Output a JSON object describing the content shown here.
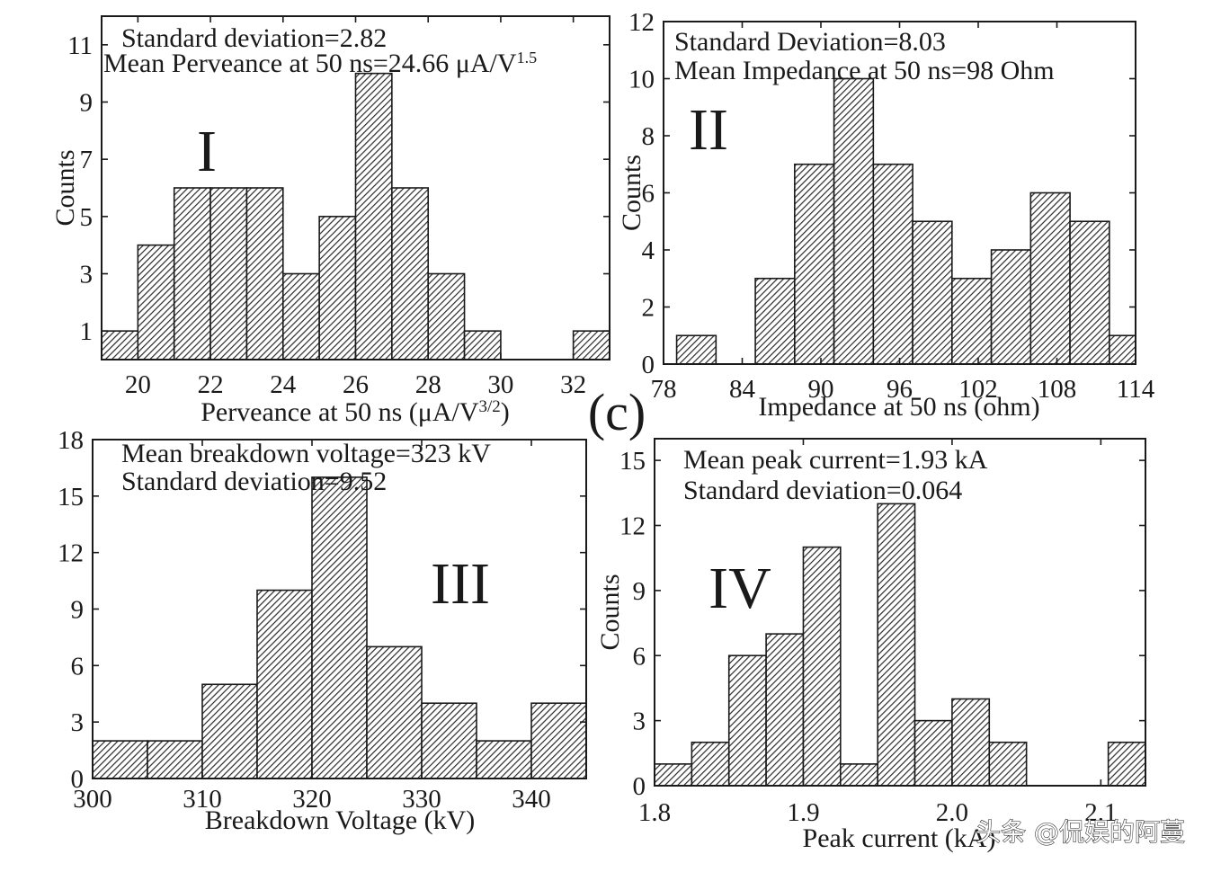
{
  "figure_label": "(c)",
  "watermark": "头条 @侃娱的阿蔓",
  "colors": {
    "bar_fill_pattern": "#2a2a2a",
    "bar_stroke": "#1a1a1a",
    "axis": "#1a1a1a",
    "background": "#ffffff"
  },
  "chart_data": [
    {
      "id": "I",
      "type": "bar",
      "roman": "I",
      "xlabel": "Perveance at 50 ns (μA/V",
      "xlabel_sup": "3/2",
      "xlabel_end": ")",
      "ylabel": "Counts",
      "xlim": [
        19,
        33
      ],
      "ylim": [
        0,
        12
      ],
      "xticks": [
        20,
        22,
        24,
        26,
        28,
        30,
        32
      ],
      "yticks": [
        1,
        3,
        5,
        7,
        9,
        11
      ],
      "bin_width": 1,
      "bins": [
        {
          "x": 19,
          "count": 1
        },
        {
          "x": 20,
          "count": 4
        },
        {
          "x": 21,
          "count": 6
        },
        {
          "x": 22,
          "count": 6
        },
        {
          "x": 23,
          "count": 6
        },
        {
          "x": 24,
          "count": 3
        },
        {
          "x": 25,
          "count": 5
        },
        {
          "x": 26,
          "count": 10
        },
        {
          "x": 27,
          "count": 6
        },
        {
          "x": 28,
          "count": 3
        },
        {
          "x": 29,
          "count": 1
        },
        {
          "x": 32,
          "count": 1
        }
      ],
      "annotations": [
        {
          "text": "Standard deviation=2.82"
        },
        {
          "text": "Mean Perveance at 50 ns=24.66 μA/V",
          "sup": "1.5"
        }
      ]
    },
    {
      "id": "II",
      "type": "bar",
      "roman": "II",
      "xlabel": "Impedance at 50 ns (ohm)",
      "ylabel": "Counts",
      "xlim": [
        78,
        114
      ],
      "ylim": [
        0,
        12
      ],
      "xticks": [
        78,
        84,
        90,
        96,
        102,
        108,
        114
      ],
      "yticks": [
        0,
        2,
        4,
        6,
        8,
        10,
        12
      ],
      "bin_width": 3,
      "bins": [
        {
          "x": 79,
          "count": 1
        },
        {
          "x": 85,
          "count": 3
        },
        {
          "x": 88,
          "count": 7
        },
        {
          "x": 91,
          "count": 10
        },
        {
          "x": 94,
          "count": 7
        },
        {
          "x": 97,
          "count": 5
        },
        {
          "x": 100,
          "count": 3
        },
        {
          "x": 103,
          "count": 4
        },
        {
          "x": 106,
          "count": 6
        },
        {
          "x": 109,
          "count": 5
        },
        {
          "x": 112,
          "count": 1
        }
      ],
      "annotations": [
        {
          "text": "Standard Deviation=8.03"
        },
        {
          "text": "Mean Impedance at 50 ns=98 Ohm"
        }
      ]
    },
    {
      "id": "III",
      "type": "bar",
      "roman": "III",
      "xlabel": "Breakdown Voltage (kV)",
      "ylabel": "",
      "xlim": [
        300,
        345
      ],
      "ylim": [
        0,
        18
      ],
      "xticks": [
        300,
        310,
        320,
        330,
        340
      ],
      "yticks": [
        0,
        3,
        6,
        9,
        12,
        15,
        18
      ],
      "bin_width": 5,
      "bins": [
        {
          "x": 300,
          "count": 2
        },
        {
          "x": 305,
          "count": 2
        },
        {
          "x": 310,
          "count": 5
        },
        {
          "x": 315,
          "count": 10
        },
        {
          "x": 320,
          "count": 16
        },
        {
          "x": 325,
          "count": 7
        },
        {
          "x": 330,
          "count": 4
        },
        {
          "x": 335,
          "count": 2
        },
        {
          "x": 340,
          "count": 4
        }
      ],
      "annotations": [
        {
          "text": "Mean breakdown voltage=323 kV"
        },
        {
          "text": "Standard deviation=9.52"
        }
      ]
    },
    {
      "id": "IV",
      "type": "bar",
      "roman": "IV",
      "xlabel": "Peak current (kA)",
      "ylabel": "Counts",
      "xlim": [
        1.8,
        2.13
      ],
      "ylim": [
        0,
        16
      ],
      "xticks": [
        "1.8",
        "1.9",
        "2.0",
        "2.1"
      ],
      "yticks": [
        0,
        3,
        6,
        9,
        12,
        15
      ],
      "bin_width": 0.025,
      "bins": [
        {
          "x": 1.8,
          "count": 1
        },
        {
          "x": 1.825,
          "count": 2
        },
        {
          "x": 1.85,
          "count": 6
        },
        {
          "x": 1.875,
          "count": 7
        },
        {
          "x": 1.9,
          "count": 11
        },
        {
          "x": 1.925,
          "count": 1
        },
        {
          "x": 1.95,
          "count": 13
        },
        {
          "x": 1.975,
          "count": 3
        },
        {
          "x": 2.0,
          "count": 4
        },
        {
          "x": 2.025,
          "count": 2
        },
        {
          "x": 2.105,
          "count": 2
        }
      ],
      "annotations": [
        {
          "text": "Mean peak current=1.93 kA"
        },
        {
          "text": "Standard deviation=0.064"
        }
      ]
    }
  ]
}
